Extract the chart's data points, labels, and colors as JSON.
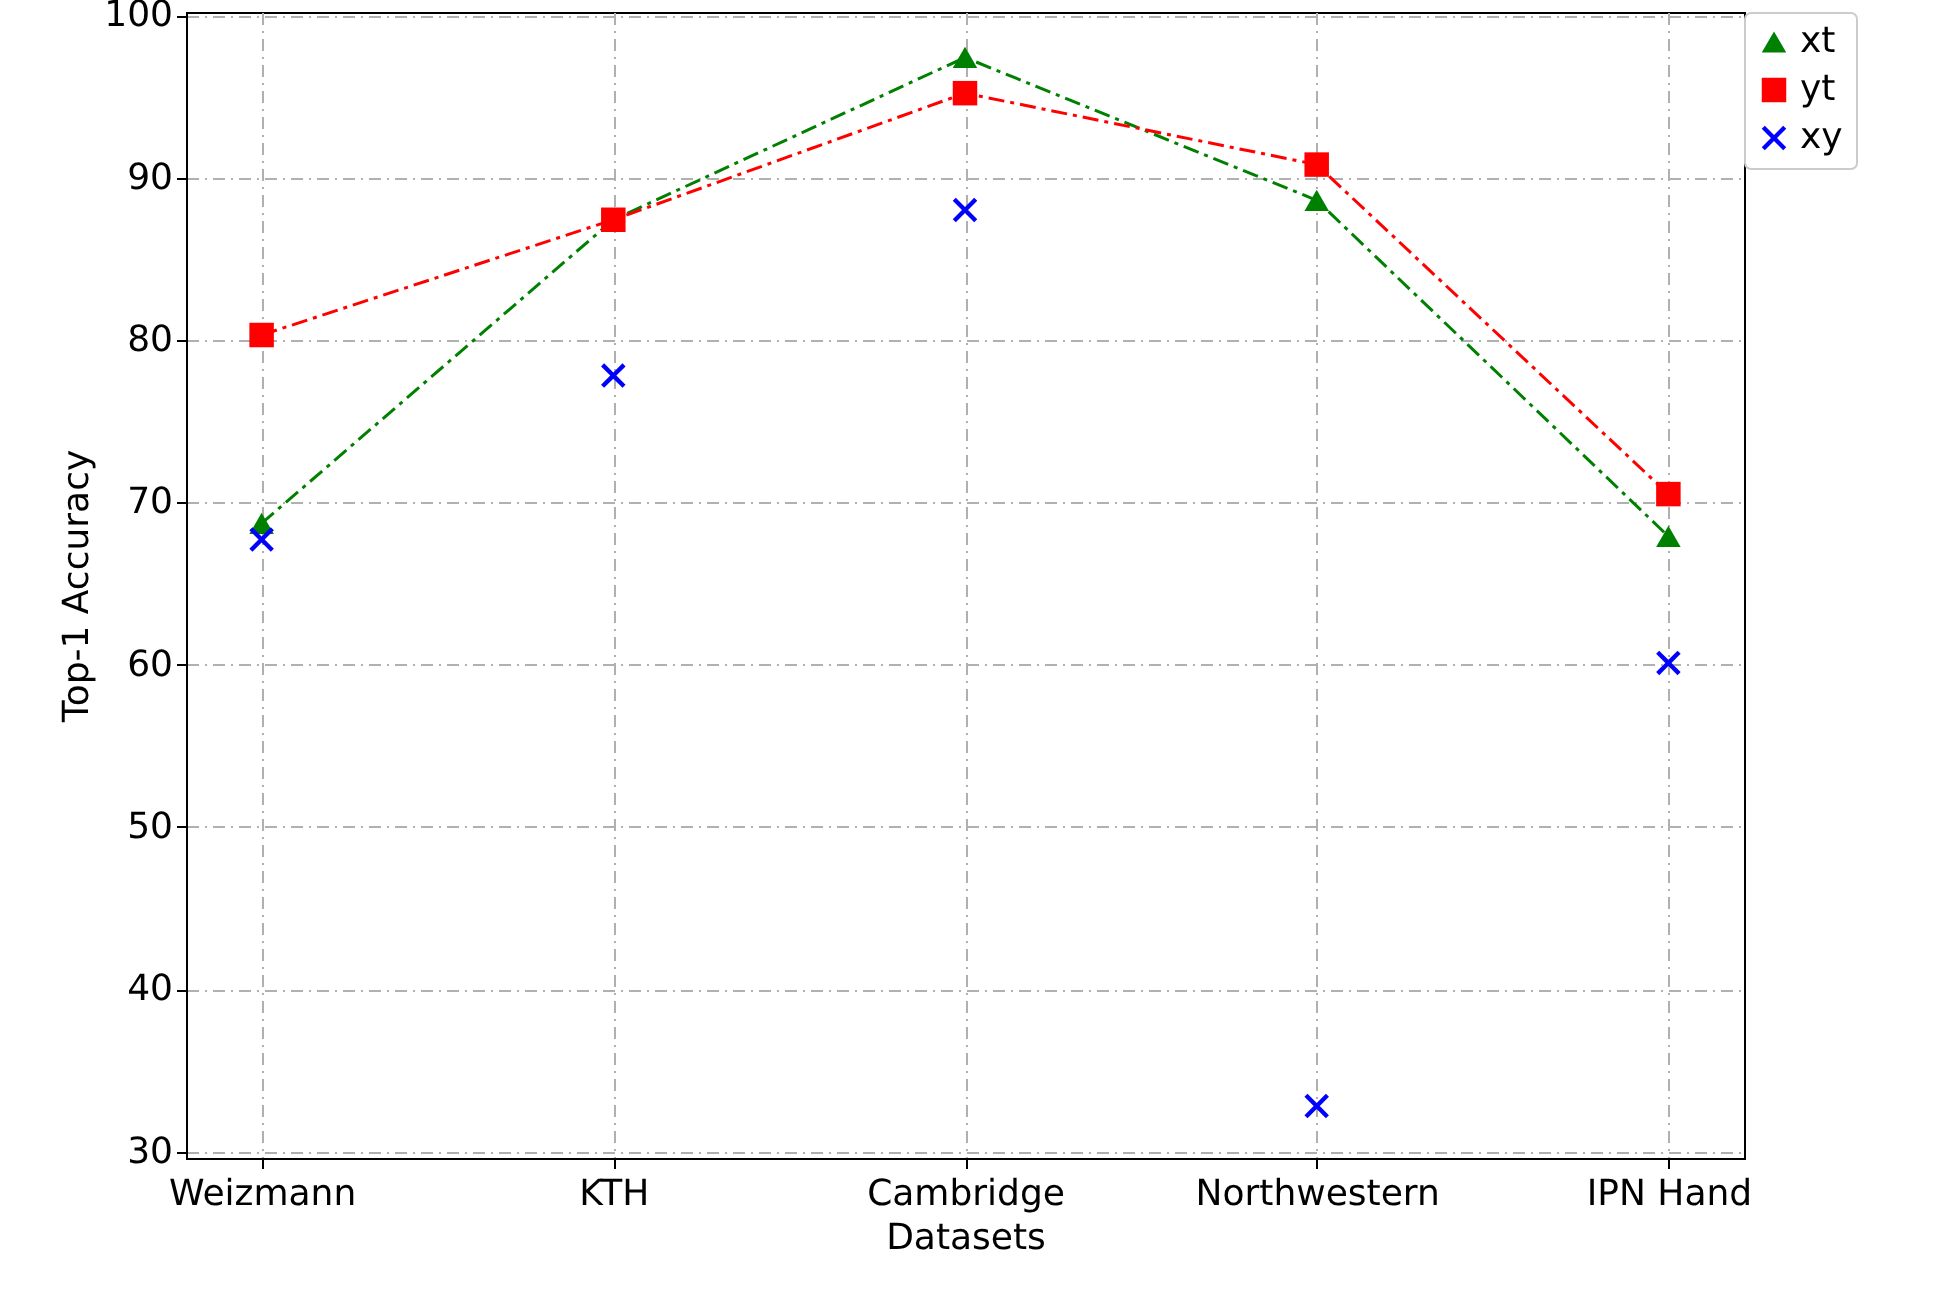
{
  "chart_data": {
    "type": "line",
    "xlabel": "Datasets",
    "ylabel": "Top-1 Accuracy",
    "categories": [
      "Weizmann",
      "KTH",
      "Cambridge",
      "Northwestern",
      "IPN Hand"
    ],
    "series": [
      {
        "name": "xt",
        "color": "#008000",
        "marker": "triangle",
        "line_style": "dashed",
        "values": [
          68.7,
          87.4,
          97.4,
          88.6,
          67.9
        ]
      },
      {
        "name": "yt",
        "color": "#ff0000",
        "marker": "square",
        "line_style": "dashed",
        "values": [
          80.3,
          87.4,
          95.2,
          90.8,
          70.5
        ]
      },
      {
        "name": "xy",
        "type": "scatter",
        "color": "#0000ff",
        "marker": "cross",
        "values": [
          67.7,
          77.8,
          88.0,
          32.8,
          60.1
        ]
      }
    ],
    "ylim": [
      29.6,
      100.2
    ],
    "yticks": [
      30,
      40,
      50,
      60,
      70,
      80,
      90,
      100
    ],
    "grid": true,
    "legend": "top right"
  }
}
